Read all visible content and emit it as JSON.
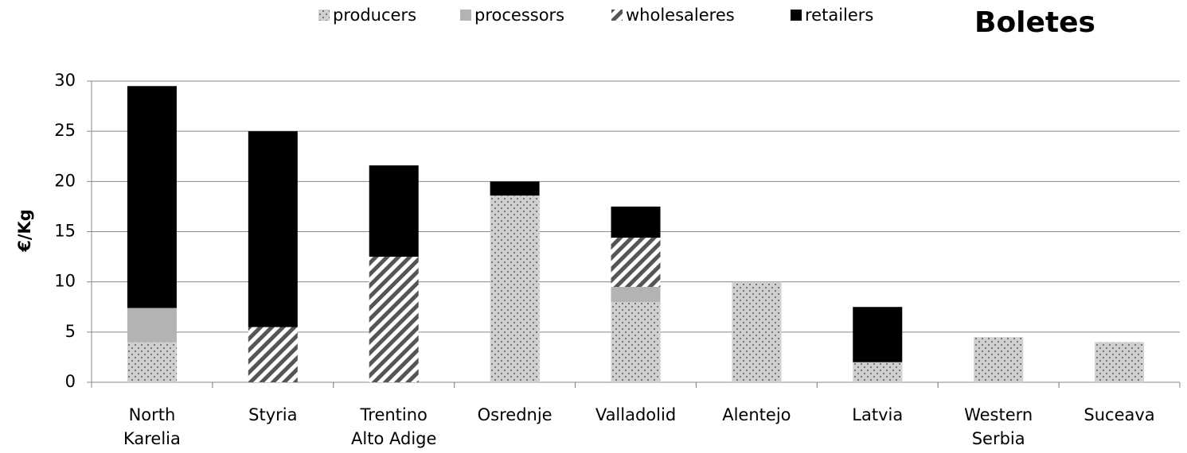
{
  "chart_data": {
    "type": "stacked_bar",
    "title": "Boletes",
    "y_label": "€/Kg",
    "categories": [
      [
        "North",
        "Karelia"
      ],
      [
        "Styria"
      ],
      [
        "Trentino",
        "Alto Adige"
      ],
      [
        "Osrednje"
      ],
      [
        "Valladolid"
      ],
      [
        "Alentejo"
      ],
      [
        "Latvia"
      ],
      [
        "Western",
        "Serbia"
      ],
      [
        "Suceava"
      ]
    ],
    "series": [
      {
        "name": "producers",
        "color": "#d0d0d0",
        "pattern": "dots",
        "values": [
          4,
          0,
          0,
          18.6,
          8,
          10,
          2,
          4.5,
          4
        ]
      },
      {
        "name": "processors",
        "color": "#b3b3b3",
        "pattern": "solid",
        "values": [
          3.4,
          0,
          0,
          0,
          1.5,
          0,
          0,
          0,
          0
        ]
      },
      {
        "name": "wholesaleres",
        "color": "#555555",
        "pattern": "hatch",
        "values": [
          0,
          5.5,
          12.5,
          0,
          4.9,
          0,
          0,
          0,
          0
        ]
      },
      {
        "name": "retailers",
        "color": "#000000",
        "pattern": "solid",
        "values": [
          22.1,
          19.5,
          9.1,
          1.4,
          3.1,
          0,
          5.5,
          0,
          0
        ]
      }
    ],
    "ylim": [
      0,
      30
    ],
    "yticks": [
      0,
      5,
      10,
      15,
      20,
      25,
      30
    ],
    "grid": true
  }
}
